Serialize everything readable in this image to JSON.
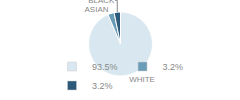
{
  "chart_data": {
    "type": "pie",
    "categories": [
      "WHITE",
      "ASIAN",
      "BLACK"
    ],
    "values": [
      93.5,
      3.2,
      3.2
    ],
    "value_labels": [
      "93.5%",
      "3.2%",
      "3.2%"
    ],
    "colors": [
      "#d9e8f0",
      "#6a9db8",
      "#2d5a7b"
    ],
    "legend": "bottom"
  }
}
